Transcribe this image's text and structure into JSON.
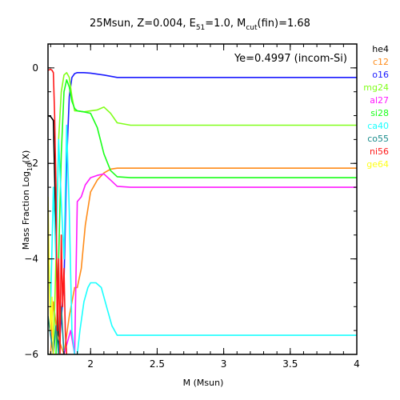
{
  "chart_data": {
    "type": "line",
    "title": "25Msun, Z=0.004, E_51=1.0, M_cut(fin)=1.68",
    "title_parts": {
      "main": "25Msun, Z=0.004, E",
      "sub1": "51",
      "mid": "=1.0, M",
      "sub2": "cut",
      "end": "(fin)=1.68"
    },
    "xlabel": "M (Msun)",
    "ylabel": "Mass Fraction Log10(X)",
    "ylabel_parts": {
      "main": "Mass Fraction Log",
      "sub": "10",
      "end": "(X)"
    },
    "annotation": "Ye=0.4997 (incom-Si)",
    "xlim": [
      1.68,
      4.0
    ],
    "ylim": [
      -6.0,
      0.5
    ],
    "x_ticks": [
      {
        "value": 2.0,
        "label": "2"
      },
      {
        "value": 2.5,
        "label": "2.5"
      },
      {
        "value": 3.0,
        "label": "3"
      },
      {
        "value": 3.5,
        "label": "3.5"
      },
      {
        "value": 4.0,
        "label": "4"
      }
    ],
    "y_ticks": [
      {
        "value": 0,
        "label": "0"
      },
      {
        "value": -2,
        "label": "−2"
      },
      {
        "value": -4,
        "label": "−4"
      },
      {
        "value": -6,
        "label": "−6"
      }
    ],
    "legend_position": "right",
    "series": [
      {
        "name": "he4",
        "color": "#000000",
        "x": [
          1.68,
          1.7,
          1.72,
          1.74,
          1.76,
          1.78,
          1.8
        ],
        "y": [
          -1.0,
          -1.02,
          -1.1,
          -3.5,
          -6.0,
          -6.0,
          -6.0
        ]
      },
      {
        "name": "c12",
        "color": "#ff8c1a",
        "x": [
          1.68,
          1.7,
          1.72,
          1.75,
          1.8,
          1.84,
          1.88,
          1.9,
          1.93,
          1.96,
          2.0,
          2.05,
          2.1,
          2.15,
          2.2,
          2.3,
          2.5,
          4.0
        ],
        "y": [
          -6.0,
          -6.0,
          -4.9,
          -5.6,
          -6.0,
          -5.2,
          -4.6,
          -4.6,
          -4.2,
          -3.3,
          -2.6,
          -2.35,
          -2.2,
          -2.12,
          -2.1,
          -2.1,
          -2.1,
          -2.1
        ]
      },
      {
        "name": "o16",
        "color": "#1a1aff",
        "x": [
          1.68,
          1.72,
          1.76,
          1.8,
          1.82,
          1.84,
          1.86,
          1.88,
          1.9,
          1.95,
          2.0,
          2.1,
          2.2,
          2.3,
          4.0
        ],
        "y": [
          -6.0,
          -6.0,
          -6.0,
          -4.5,
          -2.0,
          -0.6,
          -0.2,
          -0.12,
          -0.1,
          -0.1,
          -0.11,
          -0.15,
          -0.2,
          -0.2,
          -0.2
        ]
      },
      {
        "name": "mg24",
        "color": "#80ff1a",
        "x": [
          1.68,
          1.7,
          1.72,
          1.74,
          1.76,
          1.78,
          1.8,
          1.82,
          1.84,
          1.86,
          1.88,
          1.9,
          1.95,
          2.0,
          2.05,
          2.1,
          2.15,
          2.2,
          2.3,
          2.5,
          4.0
        ],
        "y": [
          -6.0,
          -6.0,
          -6.0,
          -4.0,
          -1.5,
          -0.5,
          -0.15,
          -0.1,
          -0.2,
          -0.6,
          -0.9,
          -0.9,
          -0.92,
          -0.9,
          -0.88,
          -0.82,
          -0.95,
          -1.15,
          -1.2,
          -1.2,
          -1.2
        ]
      },
      {
        "name": "al27",
        "color": "#ff1aff",
        "x": [
          1.68,
          1.72,
          1.76,
          1.8,
          1.85,
          1.88,
          1.9,
          1.93,
          1.96,
          2.0,
          2.05,
          2.1,
          2.15,
          2.2,
          2.3,
          2.5,
          4.0
        ],
        "y": [
          -6.0,
          -6.0,
          -6.0,
          -6.0,
          -5.5,
          -6.0,
          -2.8,
          -2.7,
          -2.45,
          -2.3,
          -2.25,
          -2.22,
          -2.35,
          -2.48,
          -2.5,
          -2.5,
          -2.5
        ]
      },
      {
        "name": "si28",
        "color": "#1aff1a",
        "x": [
          1.68,
          1.72,
          1.74,
          1.76,
          1.78,
          1.8,
          1.82,
          1.84,
          1.86,
          1.88,
          1.9,
          1.95,
          2.0,
          2.05,
          2.1,
          2.15,
          2.2,
          2.3,
          2.5,
          4.0
        ],
        "y": [
          -6.0,
          -6.0,
          -6.0,
          -4.0,
          -1.8,
          -0.5,
          -0.25,
          -0.4,
          -0.7,
          -0.85,
          -0.9,
          -0.92,
          -0.95,
          -1.25,
          -1.8,
          -2.15,
          -2.28,
          -2.3,
          -2.3,
          -2.3
        ]
      },
      {
        "name": "ca40",
        "color": "#1affff",
        "x": [
          1.68,
          1.7,
          1.72,
          1.74,
          1.76,
          1.78,
          1.8,
          1.82,
          1.84,
          1.86,
          1.88,
          1.9,
          1.92,
          1.95,
          1.98,
          2.0,
          2.04,
          2.08,
          2.12,
          2.16,
          2.2,
          2.3,
          2.5,
          4.0
        ],
        "y": [
          -3.6,
          -5.0,
          -2.5,
          -4.0,
          -1.5,
          -2.8,
          -4.0,
          -1.2,
          -3.0,
          -5.5,
          -6.0,
          -6.0,
          -5.5,
          -4.9,
          -4.6,
          -4.5,
          -4.5,
          -4.6,
          -5.0,
          -5.4,
          -5.6,
          -5.6,
          -5.6,
          -5.6
        ]
      },
      {
        "name": "co55",
        "color": "#1a8c8c",
        "x": [
          1.68,
          1.7,
          1.72,
          1.74,
          1.76,
          1.78,
          1.8
        ],
        "y": [
          -5.2,
          -5.6,
          -6.0,
          -5.4,
          -6.0,
          -5.0,
          -6.0
        ]
      },
      {
        "name": "ni56",
        "color": "#ff1a1a",
        "x": [
          1.68,
          1.7,
          1.71,
          1.72,
          1.73,
          1.74,
          1.75,
          1.76,
          1.77,
          1.78,
          1.79,
          1.8,
          1.81,
          1.82
        ],
        "y": [
          -0.05,
          -0.03,
          -0.05,
          -0.1,
          -1.0,
          -2.5,
          -5.5,
          -4.0,
          -6.0,
          -3.5,
          -5.0,
          -4.2,
          -5.5,
          -6.0
        ]
      },
      {
        "name": "ge64",
        "color": "#ffff1a",
        "x": [
          1.68,
          1.69,
          1.7,
          1.71,
          1.72,
          1.74,
          1.76,
          1.78
        ],
        "y": [
          -2.7,
          -4.5,
          -5.5,
          -4.8,
          -6.0,
          -6.0,
          -6.0,
          -6.0
        ]
      }
    ]
  }
}
